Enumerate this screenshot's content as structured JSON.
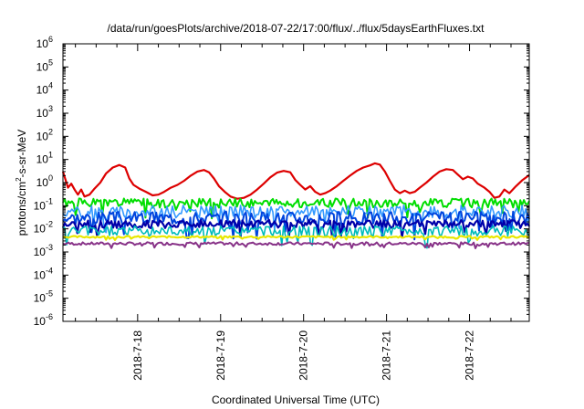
{
  "chart_data": {
    "type": "line",
    "title": "/data/run/goesPlots/archive/2018-07-22/17:00/flux/../flux/5daysEarthFluxes.txt",
    "xlabel": "Coordinated Universal Time (UTC)",
    "ylabel": {
      "main": "protons/cm",
      "sup": "2",
      "rest": "-s-sr-MeV"
    },
    "yscale": "log",
    "ylim_exp": [
      -6,
      6
    ],
    "xlim_days": [
      17.1,
      22.72
    ],
    "x_ticks": [
      {
        "day": 18,
        "label": "2018-7-18"
      },
      {
        "day": 19,
        "label": "2018-7-19"
      },
      {
        "day": 20,
        "label": "2018-7-20"
      },
      {
        "day": 21,
        "label": "2018-7-21"
      },
      {
        "day": 22,
        "label": "2018-7-22"
      }
    ],
    "y_ticks": [
      {
        "base": "10",
        "exp": "6"
      },
      {
        "base": "10",
        "exp": "5"
      },
      {
        "base": "10",
        "exp": "4"
      },
      {
        "base": "10",
        "exp": "3"
      },
      {
        "base": "10",
        "exp": "2"
      },
      {
        "base": "10",
        "exp": "1"
      },
      {
        "base": "10",
        "exp": "0"
      },
      {
        "base": "10",
        "exp": "-1"
      },
      {
        "base": "10",
        "exp": "-2"
      },
      {
        "base": "10",
        "exp": "-3"
      },
      {
        "base": "10",
        "exp": "-4"
      },
      {
        "base": "10",
        "exp": "-5"
      },
      {
        "base": "10",
        "exp": "-6"
      }
    ],
    "series": [
      {
        "color": "#dd0000",
        "width": 2.2,
        "points": [
          [
            17.1,
            3.0
          ],
          [
            17.16,
            0.6
          ],
          [
            17.2,
            0.9
          ],
          [
            17.24,
            0.5
          ],
          [
            17.28,
            0.3
          ],
          [
            17.32,
            0.5
          ],
          [
            17.36,
            0.25
          ],
          [
            17.42,
            0.3
          ],
          [
            17.48,
            0.55
          ],
          [
            17.55,
            1.0
          ],
          [
            17.62,
            2.5
          ],
          [
            17.7,
            4.5
          ],
          [
            17.78,
            5.8
          ],
          [
            17.85,
            4.5
          ],
          [
            17.9,
            1.5
          ],
          [
            17.95,
            0.8
          ],
          [
            18.02,
            0.55
          ],
          [
            18.1,
            0.4
          ],
          [
            18.18,
            0.28
          ],
          [
            18.25,
            0.3
          ],
          [
            18.32,
            0.4
          ],
          [
            18.4,
            0.6
          ],
          [
            18.48,
            0.8
          ],
          [
            18.56,
            1.2
          ],
          [
            18.64,
            2.0
          ],
          [
            18.72,
            3.0
          ],
          [
            18.8,
            3.5
          ],
          [
            18.86,
            2.8
          ],
          [
            18.92,
            1.5
          ],
          [
            18.98,
            0.7
          ],
          [
            19.05,
            0.4
          ],
          [
            19.12,
            0.25
          ],
          [
            19.2,
            0.2
          ],
          [
            19.28,
            0.22
          ],
          [
            19.36,
            0.3
          ],
          [
            19.44,
            0.5
          ],
          [
            19.52,
            0.9
          ],
          [
            19.6,
            1.7
          ],
          [
            19.68,
            2.7
          ],
          [
            19.76,
            3.2
          ],
          [
            19.84,
            2.8
          ],
          [
            19.9,
            1.3
          ],
          [
            19.96,
            0.8
          ],
          [
            20.02,
            0.5
          ],
          [
            20.08,
            0.7
          ],
          [
            20.14,
            0.4
          ],
          [
            20.2,
            0.3
          ],
          [
            20.26,
            0.35
          ],
          [
            20.32,
            0.45
          ],
          [
            20.4,
            0.7
          ],
          [
            20.48,
            1.2
          ],
          [
            20.56,
            2.0
          ],
          [
            20.64,
            3.2
          ],
          [
            20.72,
            4.5
          ],
          [
            20.8,
            5.5
          ],
          [
            20.86,
            6.8
          ],
          [
            20.92,
            6.0
          ],
          [
            20.98,
            3.0
          ],
          [
            21.04,
            1.2
          ],
          [
            21.1,
            0.5
          ],
          [
            21.16,
            0.35
          ],
          [
            21.22,
            0.45
          ],
          [
            21.28,
            0.35
          ],
          [
            21.34,
            0.4
          ],
          [
            21.4,
            0.6
          ],
          [
            21.48,
            1.0
          ],
          [
            21.56,
            1.8
          ],
          [
            21.64,
            3.0
          ],
          [
            21.72,
            3.8
          ],
          [
            21.8,
            3.5
          ],
          [
            21.86,
            2.2
          ],
          [
            21.92,
            1.4
          ],
          [
            21.98,
            1.8
          ],
          [
            22.04,
            1.5
          ],
          [
            22.1,
            0.9
          ],
          [
            22.18,
            0.6
          ],
          [
            22.24,
            0.4
          ],
          [
            22.3,
            0.22
          ],
          [
            22.36,
            0.25
          ],
          [
            22.42,
            0.5
          ],
          [
            22.48,
            0.35
          ],
          [
            22.56,
            0.7
          ],
          [
            22.64,
            1.3
          ],
          [
            22.72,
            2.1
          ]
        ]
      },
      {
        "color": "#00dd00",
        "width": 2.0,
        "base": 0.13,
        "amp": 0.4,
        "seed": 1
      },
      {
        "color": "#3399ff",
        "width": 1.6,
        "base": 0.055,
        "amp": 0.55,
        "seed": 2
      },
      {
        "color": "#0044dd",
        "width": 2.0,
        "base": 0.03,
        "amp": 0.55,
        "seed": 3
      },
      {
        "color": "#0000aa",
        "width": 2.2,
        "base": 0.016,
        "amp": 0.35,
        "seed": 4
      },
      {
        "color": "#00bbbb",
        "width": 1.6,
        "base": 0.008,
        "amp": 0.45,
        "seed": 5
      },
      {
        "color": "#e8e800",
        "width": 2.2,
        "base": 0.0045,
        "amp": 0.08,
        "seed": 6
      },
      {
        "color": "#883388",
        "width": 2.0,
        "base": 0.0023,
        "amp": 0.12,
        "seed": 7
      }
    ]
  }
}
